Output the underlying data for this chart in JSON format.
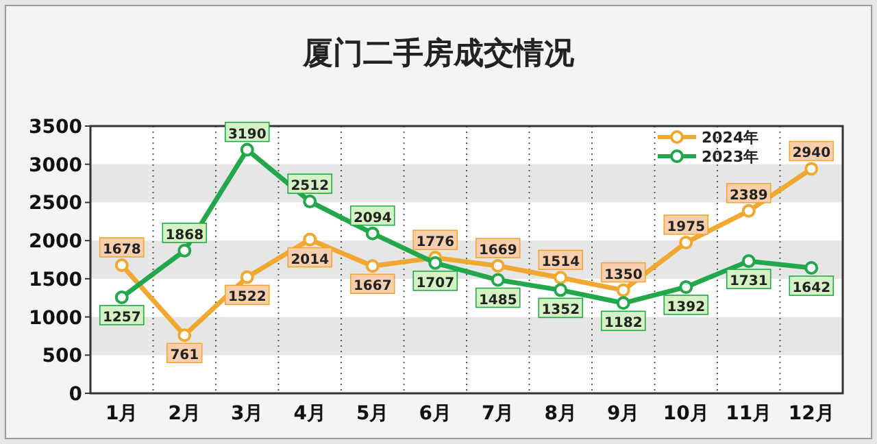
{
  "chart_data": {
    "type": "line",
    "title": "厦门二手房成交情况",
    "categories": [
      "1月",
      "2月",
      "3月",
      "4月",
      "5月",
      "6月",
      "7月",
      "8月",
      "9月",
      "10月",
      "11月",
      "12月"
    ],
    "series": [
      {
        "name": "2024年",
        "color": "#f0a830",
        "values": [
          1678,
          761,
          1522,
          2014,
          1667,
          1776,
          1669,
          1514,
          1350,
          1975,
          2389,
          2940
        ]
      },
      {
        "name": "2023年",
        "color": "#22a84a",
        "values": [
          1257,
          1868,
          3190,
          2512,
          2094,
          1707,
          1485,
          1352,
          1182,
          1392,
          1731,
          1642
        ]
      }
    ],
    "ylim": [
      0,
      3500
    ],
    "yticks": [
      0,
      500,
      1000,
      1500,
      2000,
      2500,
      3000,
      3500
    ],
    "grid": true,
    "legend": "top right",
    "marker": "circle",
    "line_style": "solid",
    "data_labels": true
  }
}
